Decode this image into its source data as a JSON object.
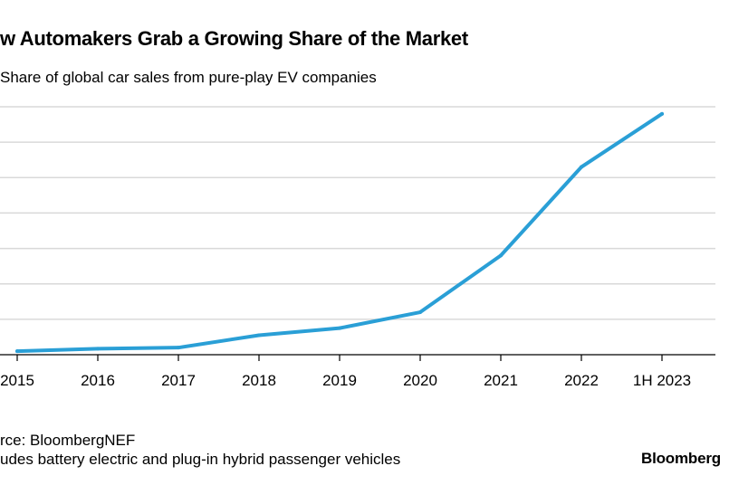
{
  "header": {
    "title": "w Automakers Grab a Growing Share of the Market",
    "subtitle": "Share of global car sales from pure-play EV companies"
  },
  "footer": {
    "source": "rce: BloombergNEF",
    "note": "udes battery electric and plug-in hybrid passenger vehicles",
    "logo": "Bloomberg"
  },
  "chart_data": {
    "type": "line",
    "title": "w Automakers Grab a Growing Share of the Market",
    "subtitle": "Share of global car sales from pure-play EV companies",
    "categories": [
      "2015",
      "2016",
      "2017",
      "2018",
      "2019",
      "2020",
      "2021",
      "2022",
      "1H 2023"
    ],
    "series": [
      {
        "values": [
          0.1,
          0.17,
          0.2,
          0.55,
          0.75,
          1.2,
          2.8,
          5.3,
          6.8
        ],
        "color": "#2a9fd6"
      }
    ],
    "ylim": [
      0,
      7
    ],
    "grid": true,
    "colors": {
      "line": "#2a9fd6",
      "grid": "#d9d9d9",
      "axis": "#000000"
    }
  }
}
